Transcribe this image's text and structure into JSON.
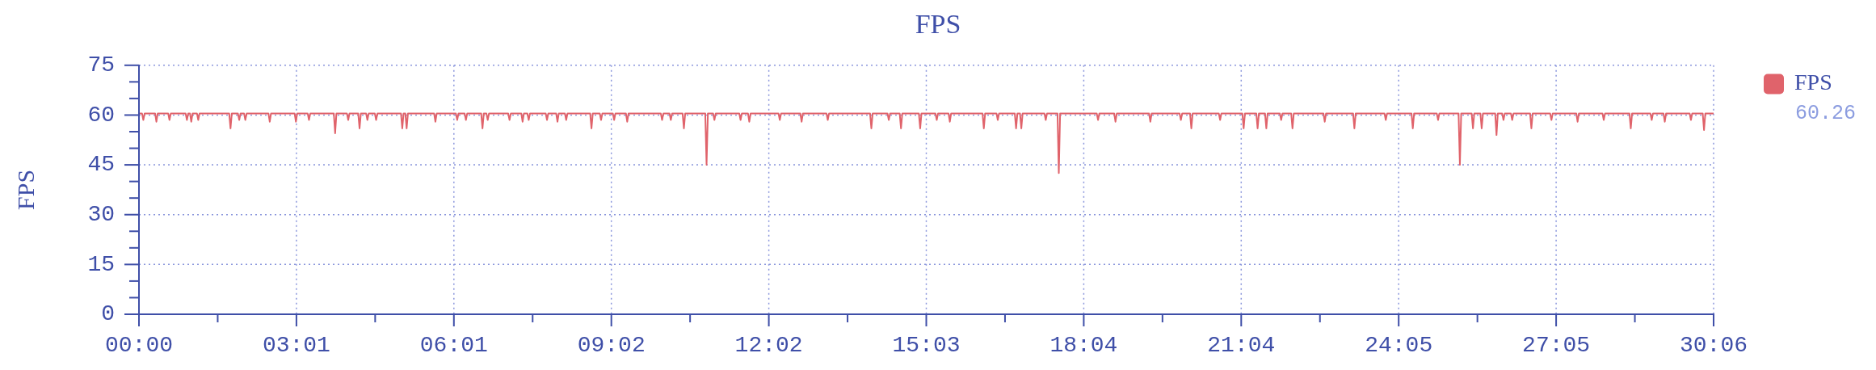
{
  "chart_data": {
    "type": "line",
    "title": "FPS",
    "ylabel": "FPS",
    "x": [
      0,
      3.5,
      5,
      6.5,
      18.5,
      20,
      21.5,
      33.5,
      35,
      36.5,
      53.5,
      55,
      56.5,
      58.5,
      60,
      61.5,
      66.5,
      68,
      69.5,
      103.5,
      105,
      106.5,
      113.5,
      115,
      116.5,
      120.5,
      122,
      123.5,
      148.5,
      150,
      151.5,
      178.5,
      180,
      181.5,
      193.5,
      195,
      196.5,
      223.5,
      225,
      226.5,
      238.5,
      240,
      241.5,
      251.5,
      253,
      254.5,
      260.5,
      262,
      263.5,
      270.5,
      272,
      273.5,
      300.5,
      302,
      303.5,
      305.5,
      307,
      308.5,
      338.5,
      340,
      341.5,
      363.5,
      365,
      366.5,
      373.5,
      375,
      376.5,
      392.5,
      394,
      395.5,
      398.5,
      400,
      401.5,
      423.5,
      425,
      426.5,
      438.5,
      440,
      441.5,
      445.5,
      447,
      448.5,
      466.5,
      468,
      469.5,
      478.5,
      480,
      481.5,
      488.5,
      490,
      491.5,
      517.5,
      519,
      520.5,
      528.5,
      530,
      531.5,
      543.5,
      545,
      546.5,
      558.5,
      560,
      561.5,
      598.5,
      600,
      601.5,
      608.5,
      610,
      611.5,
      623.5,
      625,
      626.5,
      649.5,
      651,
      652.5,
      658.5,
      660,
      661.5,
      688.5,
      690,
      691.5,
      698.5,
      700,
      701.5,
      733.5,
      735,
      736.5,
      758.5,
      760,
      761.5,
      788.5,
      790,
      791.5,
      838.5,
      840,
      841.5,
      858.5,
      860,
      861.5,
      872.5,
      874,
      875.5,
      894.5,
      896,
      897.5,
      913.5,
      915,
      916.5,
      928.5,
      930,
      931.5,
      967.5,
      969,
      970.5,
      983.5,
      985,
      986.5,
      1004.5,
      1006,
      1007.5,
      1010.5,
      1012,
      1013.5,
      1038.5,
      1040,
      1041.5,
      1053.5,
      1055,
      1056.5,
      1098.5,
      1100,
      1101.5,
      1118.5,
      1120,
      1121.5,
      1158.5,
      1160,
      1161.5,
      1193.5,
      1195,
      1196.5,
      1205.5,
      1207,
      1208.5,
      1238.5,
      1240,
      1241.5,
      1265.5,
      1267,
      1268.5,
      1281.5,
      1283,
      1284.5,
      1291.5,
      1293,
      1294.5,
      1308.5,
      1310,
      1311.5,
      1321.5,
      1323,
      1324.5,
      1358.5,
      1360,
      1361.5,
      1392.5,
      1394,
      1395.5,
      1428.5,
      1430,
      1431.5,
      1459.5,
      1461,
      1462.5,
      1488.5,
      1490,
      1491.5,
      1513.5,
      1515,
      1516.5,
      1528.5,
      1530,
      1531.5,
      1538.5,
      1540,
      1541.5,
      1555.5,
      1557,
      1558.5,
      1563.5,
      1565,
      1566.5,
      1573.5,
      1575,
      1576.5,
      1595.5,
      1597,
      1598.5,
      1618.5,
      1620,
      1621.5,
      1648.5,
      1650,
      1651.5,
      1678.5,
      1680,
      1681.5,
      1709.5,
      1711,
      1712.5,
      1733.5,
      1735,
      1736.5,
      1748.5,
      1750,
      1751.5,
      1778.5,
      1780,
      1781.5,
      1793.5,
      1795,
      1796.5,
      1806
    ],
    "series": [
      {
        "name": "FPS",
        "color": "#e0636b",
        "values": [
          60.5,
          60.5,
          58.5,
          60.5,
          60.5,
          58,
          60.5,
          60.5,
          58.5,
          60.5,
          60.5,
          58.5,
          60.5,
          60.5,
          58,
          60.5,
          60.5,
          58.5,
          60.5,
          60.5,
          56,
          60.5,
          60.5,
          58.5,
          60.5,
          60.5,
          58.5,
          60.5,
          60.5,
          58,
          60.5,
          60.5,
          58,
          60.5,
          60.5,
          58.5,
          60.5,
          60.5,
          54.5,
          60.5,
          60.5,
          58.5,
          60.5,
          60.5,
          56,
          60.5,
          60.5,
          58.5,
          60.5,
          60.5,
          58.5,
          60.5,
          60.5,
          56,
          60.5,
          60.5,
          56,
          60.5,
          60.5,
          58,
          60.5,
          60.5,
          58.5,
          60.5,
          60.5,
          58.5,
          60.5,
          60.5,
          56,
          60.5,
          60.5,
          58.5,
          60.5,
          60.5,
          58.5,
          60.5,
          60.5,
          58,
          60.5,
          60.5,
          58.5,
          60.5,
          60.5,
          58.5,
          60.5,
          60.5,
          58,
          60.5,
          60.5,
          58.5,
          60.5,
          60.5,
          56,
          60.5,
          60.5,
          58.5,
          60.5,
          60.5,
          58.5,
          60.5,
          60.5,
          58,
          60.5,
          60.5,
          58.5,
          60.5,
          60.5,
          58.5,
          60.5,
          60.5,
          56,
          60.5,
          60.5,
          45,
          60.5,
          60.5,
          58.5,
          60.5,
          60.5,
          58.5,
          60.5,
          60.5,
          58,
          60.5,
          60.5,
          58.5,
          60.5,
          60.5,
          58,
          60.5,
          60.5,
          58.5,
          60.5,
          60.5,
          56,
          60.5,
          60.5,
          58.5,
          60.5,
          60.5,
          56,
          60.5,
          60.5,
          56,
          60.5,
          60.5,
          58.5,
          60.5,
          60.5,
          58,
          60.5,
          60.5,
          56,
          60.5,
          60.5,
          58.5,
          60.5,
          60.5,
          56,
          60.5,
          60.5,
          56,
          60.5,
          60.5,
          58.5,
          60.5,
          60.5,
          42.5,
          60.5,
          60.5,
          58.5,
          60.5,
          60.5,
          58,
          60.5,
          60.5,
          58,
          60.5,
          60.5,
          58.5,
          60.5,
          60.5,
          56,
          60.5,
          60.5,
          58.5,
          60.5,
          60.5,
          56,
          60.5,
          60.5,
          56,
          60.5,
          60.5,
          56,
          60.5,
          60.5,
          58.5,
          60.5,
          60.5,
          56,
          60.5,
          60.5,
          58,
          60.5,
          60.5,
          56,
          60.5,
          60.5,
          58.5,
          60.5,
          60.5,
          56,
          60.5,
          60.5,
          58.5,
          60.5,
          60.5,
          45,
          60.5,
          60.5,
          56,
          60.5,
          60.5,
          56,
          60.5,
          60.5,
          54,
          60.5,
          60.5,
          58.5,
          60.5,
          60.5,
          58.5,
          60.5,
          60.5,
          56,
          60.5,
          60.5,
          58.5,
          60.5,
          60.5,
          58,
          60.5,
          60.5,
          58.5,
          60.5,
          60.5,
          56,
          60.5,
          60.5,
          58.5,
          60.5,
          60.5,
          58,
          60.5,
          60.5,
          58.5,
          60.5,
          60.5,
          55.5,
          60.5,
          60.5
        ]
      }
    ],
    "xlim": [
      0,
      1806
    ],
    "xticks": [
      {
        "value": 0,
        "label": "00:00"
      },
      {
        "value": 90.3,
        "label": null
      },
      {
        "value": 180.6,
        "label": "03:01"
      },
      {
        "value": 270.9,
        "label": null
      },
      {
        "value": 361.2,
        "label": "06:01"
      },
      {
        "value": 451.5,
        "label": null
      },
      {
        "value": 541.8,
        "label": "09:02"
      },
      {
        "value": 632.1,
        "label": null
      },
      {
        "value": 722.4,
        "label": "12:02"
      },
      {
        "value": 812.7,
        "label": null
      },
      {
        "value": 903,
        "label": "15:03"
      },
      {
        "value": 993.3,
        "label": null
      },
      {
        "value": 1083.6,
        "label": "18:04"
      },
      {
        "value": 1173.9,
        "label": null
      },
      {
        "value": 1264.2,
        "label": "21:04"
      },
      {
        "value": 1354.5,
        "label": null
      },
      {
        "value": 1444.8,
        "label": "24:05"
      },
      {
        "value": 1535.1,
        "label": null
      },
      {
        "value": 1625.4,
        "label": "27:05"
      },
      {
        "value": 1715.7,
        "label": null
      },
      {
        "value": 1806,
        "label": "30:06"
      }
    ],
    "ylim": [
      0,
      75
    ],
    "yticks": [
      0,
      {
        "value": 5,
        "label": null
      },
      {
        "value": 10,
        "label": null
      },
      15,
      {
        "value": 20,
        "label": null
      },
      {
        "value": 25,
        "label": null
      },
      30,
      {
        "value": 35,
        "label": null
      },
      {
        "value": 40,
        "label": null
      },
      45,
      {
        "value": 50,
        "label": null
      },
      {
        "value": 55,
        "label": null
      },
      60,
      {
        "value": 65,
        "label": null
      },
      {
        "value": 70,
        "label": null
      },
      75
    ],
    "grid": true,
    "legend": "top right",
    "marker": "none",
    "annotations": [
      "60.26"
    ]
  }
}
